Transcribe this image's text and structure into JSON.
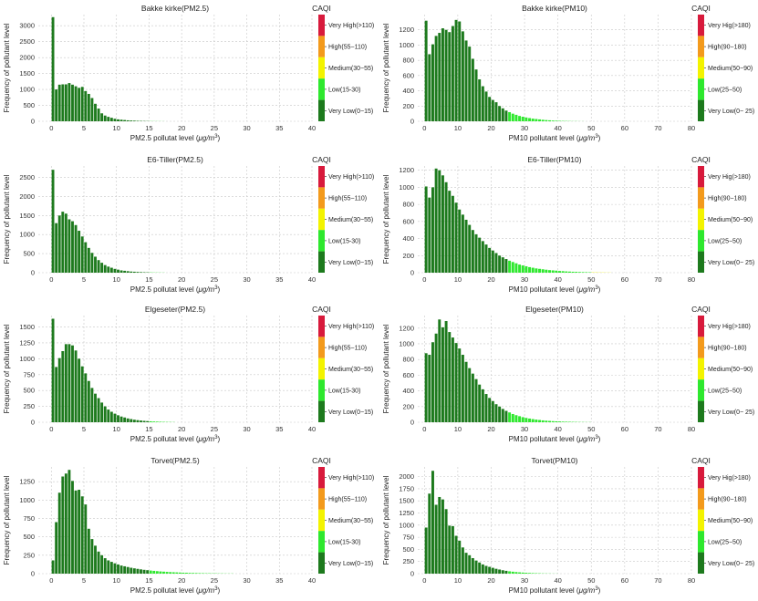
{
  "colors": {
    "very_low": "#1d7a1d",
    "low": "#2ee82e",
    "medium": "#f3f300",
    "high": "#f39a1c",
    "very_high": "#d81a3c",
    "grid": "#c8c8c8"
  },
  "legend_title": "CAQI",
  "legend_pm25": [
    "Very High(>110)",
    "High(55−110)",
    "Medium(30−55)",
    "Low(15-30)",
    "Very Low(0−15)"
  ],
  "legend_pm10": [
    "Very Hig(>180)",
    "High(90−180)",
    "Medium(50−90)",
    "Low(25−50)",
    "Very Low(0− 25)"
  ],
  "chart_data": [
    {
      "type": "bar",
      "title": "Bakke kirke(PM2.5)",
      "xlabel_main": "PM2.5 pollutat level (",
      "xlabel_unit": "μg/m",
      "xlabel_exp": "3",
      "xlabel_close": ")",
      "ylabel": "Frequency of pollutant level",
      "xlim": [
        -2,
        40
      ],
      "ylim": [
        0,
        3350
      ],
      "xticks": [
        0,
        5,
        10,
        15,
        20,
        25,
        30,
        35,
        40
      ],
      "yticks": [
        0,
        500,
        1000,
        1500,
        2000,
        2500,
        3000
      ],
      "x_start": 0,
      "bin_width": 0.5,
      "thresholds": [
        15,
        30
      ],
      "values": [
        3270,
        1000,
        1150,
        1160,
        1160,
        1200,
        1150,
        1100,
        1050,
        1080,
        950,
        860,
        730,
        550,
        400,
        250,
        180,
        140,
        110,
        80,
        60,
        50,
        40,
        30,
        25,
        20,
        15,
        12,
        10,
        8,
        6,
        5,
        4,
        3,
        2
      ]
    },
    {
      "type": "bar",
      "title": "Bakke kirke(PM10)",
      "xlabel_main": "PM10 pollutant level (",
      "xlabel_unit": "μg/m",
      "xlabel_exp": "3",
      "xlabel_close": ")",
      "ylabel": "Frequency of pollutant level",
      "xlim": [
        -2,
        80
      ],
      "ylim": [
        0,
        1400
      ],
      "xticks": [
        0,
        10,
        20,
        30,
        40,
        50,
        60,
        70,
        80
      ],
      "yticks": [
        0,
        200,
        400,
        600,
        800,
        1000,
        1200
      ],
      "x_start": 0,
      "bin_width": 1,
      "thresholds": [
        25,
        50
      ],
      "values": [
        1320,
        880,
        1010,
        1120,
        1160,
        1220,
        1200,
        1170,
        1250,
        1330,
        1310,
        1180,
        1060,
        980,
        820,
        680,
        550,
        460,
        390,
        320,
        280,
        250,
        200,
        170,
        140,
        120,
        100,
        85,
        70,
        60,
        50,
        42,
        35,
        30,
        25,
        20,
        16,
        13,
        10,
        8,
        6,
        5,
        4,
        3,
        2,
        2,
        1,
        1
      ]
    },
    {
      "type": "bar",
      "title": "E6-Tiller(PM2.5)",
      "xlabel_main": "PM2.5 pollutat level (",
      "xlabel_unit": "μg/m",
      "xlabel_exp": "3",
      "xlabel_close": ")",
      "ylabel": "Frequency of pollutant level",
      "xlim": [
        -2,
        40
      ],
      "ylim": [
        0,
        2800
      ],
      "xticks": [
        0,
        5,
        10,
        15,
        20,
        25,
        30,
        35,
        40
      ],
      "yticks": [
        0,
        500,
        1000,
        1500,
        2000,
        2500
      ],
      "x_start": 0,
      "bin_width": 0.5,
      "thresholds": [
        15,
        30
      ],
      "values": [
        2700,
        1300,
        1500,
        1600,
        1550,
        1400,
        1350,
        1250,
        1100,
        950,
        800,
        650,
        520,
        420,
        330,
        260,
        200,
        160,
        130,
        100,
        80,
        60,
        50,
        40,
        30,
        25,
        20,
        15,
        12,
        10,
        8,
        6,
        5,
        4,
        3
      ]
    },
    {
      "type": "bar",
      "title": "E6-Tiller(PM10)",
      "xlabel_main": "PM10 pollutant level (",
      "xlabel_unit": "μg/m",
      "xlabel_exp": "3",
      "xlabel_close": ")",
      "ylabel": "Frequency of pollutant level",
      "xlim": [
        -2,
        80
      ],
      "ylim": [
        0,
        1250
      ],
      "xticks": [
        0,
        10,
        20,
        30,
        40,
        50,
        60,
        70,
        80
      ],
      "yticks": [
        0,
        200,
        400,
        600,
        800,
        1000,
        1200
      ],
      "x_start": 0,
      "bin_width": 1,
      "thresholds": [
        25,
        50
      ],
      "values": [
        1010,
        880,
        1000,
        1220,
        1200,
        1140,
        1060,
        960,
        900,
        820,
        740,
        680,
        620,
        560,
        500,
        450,
        410,
        370,
        330,
        290,
        260,
        230,
        200,
        180,
        160,
        140,
        125,
        110,
        95,
        85,
        75,
        65,
        58,
        50,
        45,
        40,
        35,
        30,
        27,
        24,
        20,
        18,
        15,
        13,
        11,
        10,
        8,
        7,
        6,
        5,
        4,
        4,
        3,
        3,
        2,
        2
      ]
    },
    {
      "type": "bar",
      "title": "Elgeseter(PM2.5)",
      "xlabel_main": "PM2.5 pollutat level (",
      "xlabel_unit": "μg/m",
      "xlabel_exp": "3",
      "xlabel_close": ")",
      "ylabel": "Frequency of pollutant level",
      "xlim": [
        -2,
        40
      ],
      "ylim": [
        0,
        1680
      ],
      "xticks": [
        0,
        5,
        10,
        15,
        20,
        25,
        30,
        35,
        40
      ],
      "yticks": [
        0,
        250,
        500,
        750,
        1000,
        1250,
        1500
      ],
      "x_start": 0,
      "bin_width": 0.5,
      "thresholds": [
        15,
        30
      ],
      "values": [
        1630,
        870,
        1010,
        1120,
        1230,
        1230,
        1210,
        1130,
        1000,
        880,
        770,
        650,
        540,
        450,
        380,
        310,
        250,
        200,
        165,
        135,
        110,
        90,
        75,
        60,
        50,
        40,
        33,
        27,
        22,
        18,
        15,
        12,
        10,
        8,
        6,
        5,
        4,
        3
      ]
    },
    {
      "type": "bar",
      "title": "Elgeseter(PM10)",
      "xlabel_main": "PM10 pollutant level (",
      "xlabel_unit": "μg/m",
      "xlabel_exp": "3",
      "xlabel_close": ")",
      "ylabel": "Frequency of pollutant level",
      "xlim": [
        -2,
        80
      ],
      "ylim": [
        0,
        1360
      ],
      "xticks": [
        0,
        10,
        20,
        30,
        40,
        50,
        60,
        70,
        80
      ],
      "yticks": [
        0,
        200,
        400,
        600,
        800,
        1000,
        1200
      ],
      "x_start": 0,
      "bin_width": 1,
      "thresholds": [
        25,
        50
      ],
      "values": [
        880,
        860,
        1020,
        1130,
        1310,
        1210,
        1290,
        1150,
        1080,
        1010,
        940,
        860,
        770,
        690,
        620,
        550,
        480,
        420,
        360,
        310,
        270,
        230,
        200,
        170,
        145,
        125,
        105,
        90,
        77,
        65,
        55,
        47,
        40,
        34,
        29,
        24,
        20,
        17,
        14,
        12,
        10,
        8,
        7,
        6,
        5,
        4,
        3,
        3,
        2,
        2
      ]
    },
    {
      "type": "bar",
      "title": "Torvet(PM2.5)",
      "xlabel_main": "PM2.5 pollutat level (",
      "xlabel_unit": "μg/m",
      "xlabel_exp": "3",
      "xlabel_close": ")",
      "ylabel": "Frequency of pollutant level",
      "xlim": [
        -2,
        40
      ],
      "ylim": [
        0,
        1450
      ],
      "xticks": [
        0,
        5,
        10,
        15,
        20,
        25,
        30,
        35,
        40
      ],
      "yticks": [
        0,
        250,
        500,
        750,
        1000,
        1250
      ],
      "x_start": 0,
      "bin_width": 0.5,
      "thresholds": [
        15,
        30
      ],
      "values": [
        180,
        700,
        1100,
        1320,
        1360,
        1410,
        1260,
        1130,
        1140,
        1050,
        940,
        610,
        470,
        380,
        300,
        250,
        210,
        180,
        160,
        140,
        125,
        110,
        100,
        90,
        80,
        72,
        65,
        58,
        52,
        47,
        42,
        38,
        34,
        30,
        27,
        24,
        21,
        19,
        17,
        15,
        13,
        12,
        10,
        9,
        8,
        7,
        6,
        5,
        5,
        4,
        4,
        3,
        3,
        2,
        2,
        2
      ]
    },
    {
      "type": "bar",
      "title": "Torvet(PM10)",
      "xlabel_main": "PM10 pollutant level (",
      "xlabel_unit": "μg/m",
      "xlabel_exp": "3",
      "xlabel_close": ")",
      "ylabel": "Frequency of pollutant level",
      "xlim": [
        -2,
        80
      ],
      "ylim": [
        0,
        2200
      ],
      "xticks": [
        0,
        10,
        20,
        30,
        40,
        50,
        60,
        70,
        80
      ],
      "yticks": [
        0,
        250,
        500,
        750,
        1000,
        1250,
        1500,
        1750,
        2000
      ],
      "x_start": 0,
      "bin_width": 1,
      "thresholds": [
        25,
        50
      ],
      "values": [
        950,
        1650,
        2120,
        1420,
        1580,
        1530,
        1330,
        990,
        980,
        780,
        680,
        540,
        430,
        380,
        320,
        270,
        230,
        190,
        160,
        140,
        120,
        100,
        85,
        70,
        58,
        48,
        40,
        33,
        27,
        22,
        18,
        14,
        11,
        9,
        7,
        5,
        4,
        3,
        2,
        2
      ]
    }
  ]
}
